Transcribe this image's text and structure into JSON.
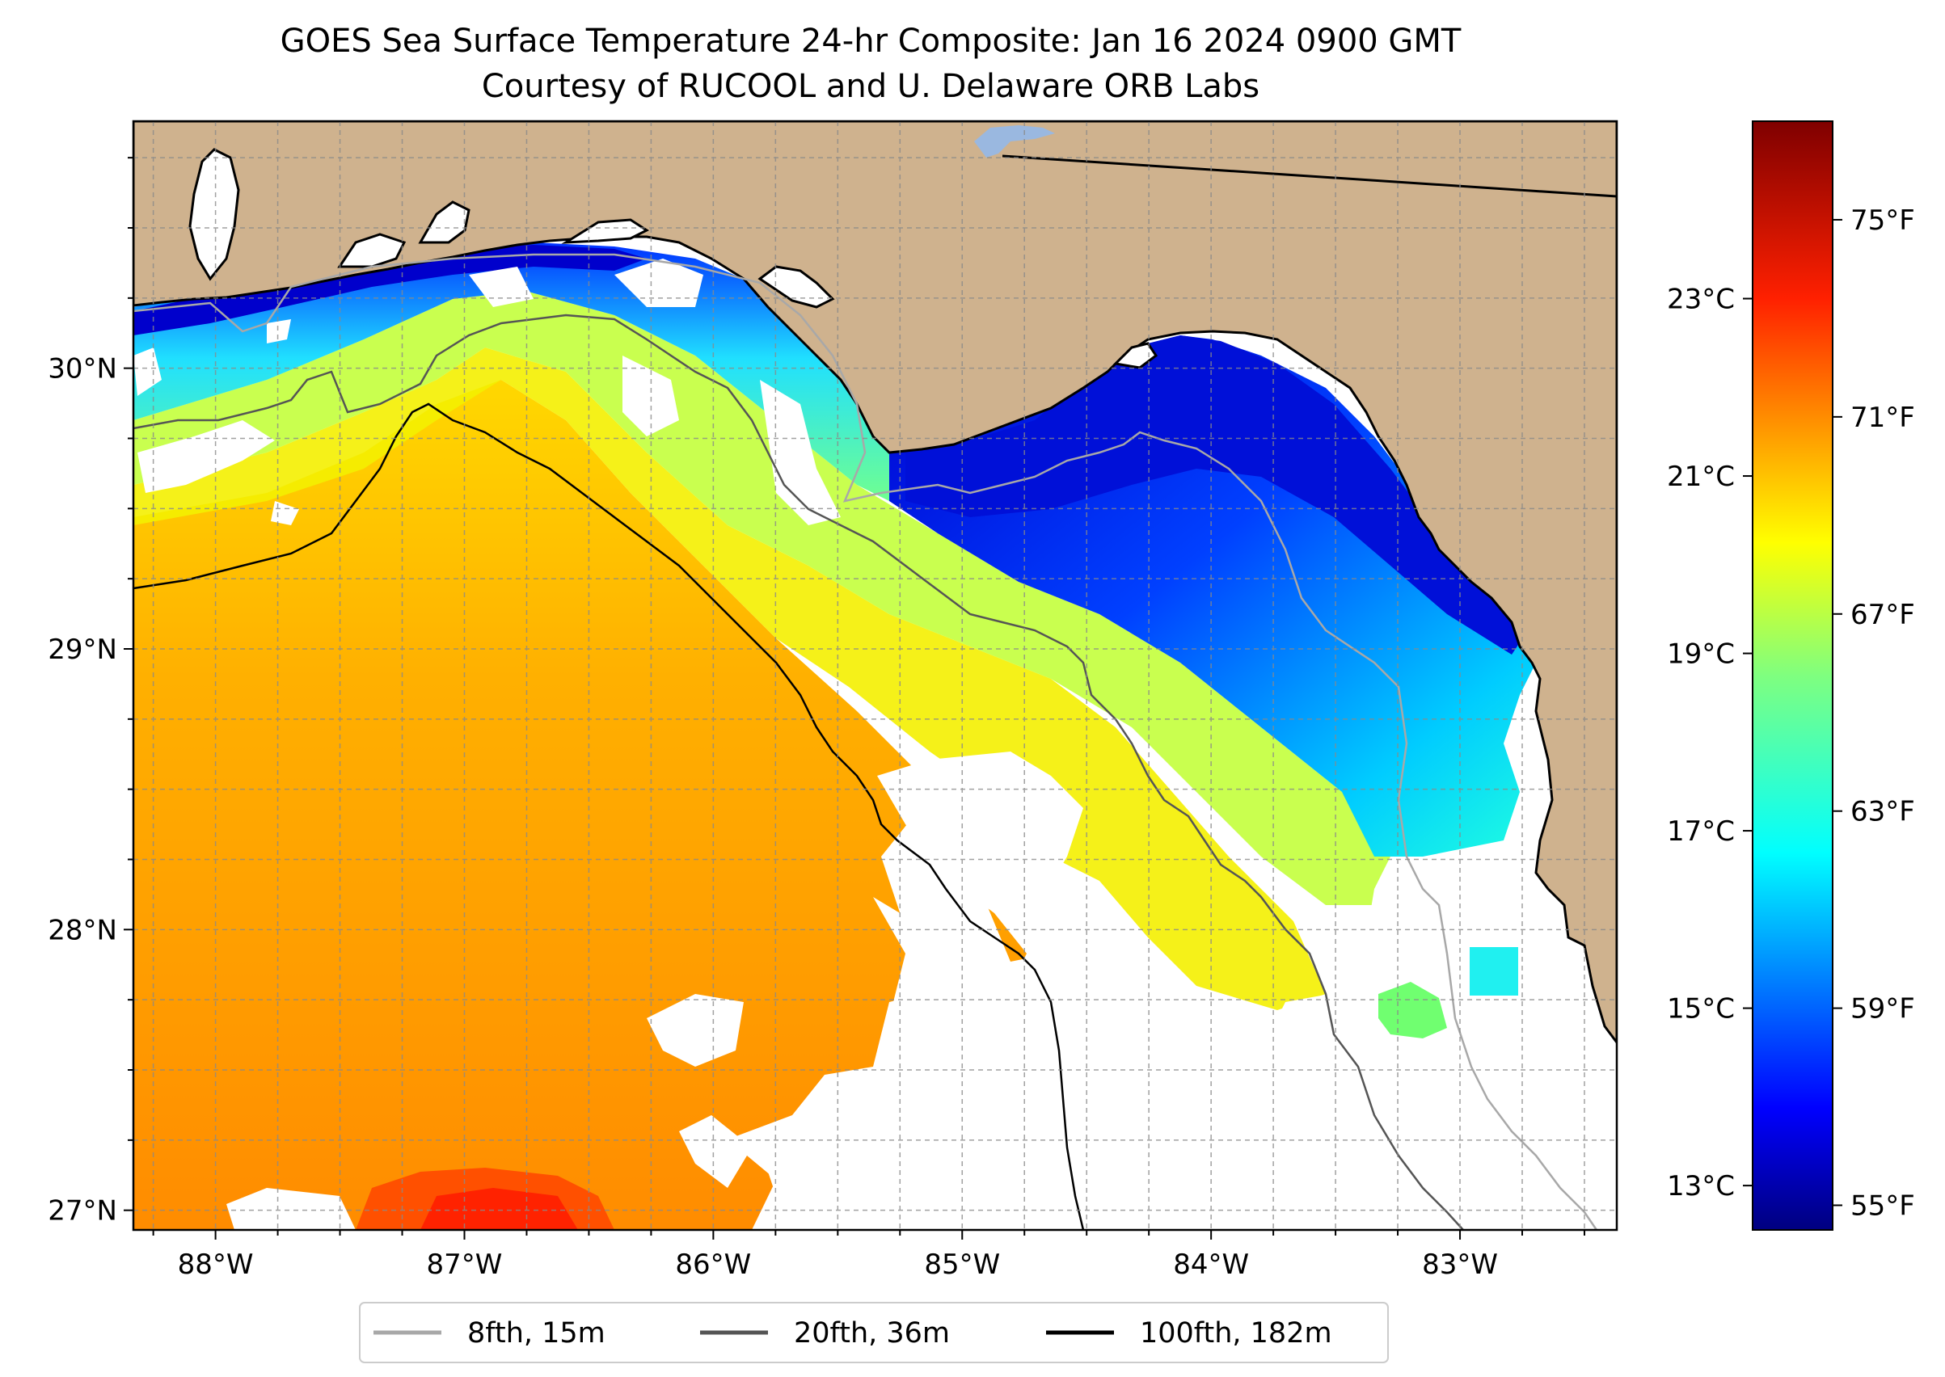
{
  "title": {
    "line1": "GOES Sea Surface Temperature 24-hr Composite: Jan 16 2024 0900 GMT",
    "line2": "Courtesy of RUCOOL and U. Delaware ORB Labs"
  },
  "map": {
    "lon_range": [
      -88.33,
      -82.37
    ],
    "lat_range": [
      26.93,
      30.88
    ],
    "lon_ticks": [
      {
        "value": -88,
        "label": "88°W"
      },
      {
        "value": -87,
        "label": "87°W"
      },
      {
        "value": -86,
        "label": "86°W"
      },
      {
        "value": -85,
        "label": "85°W"
      },
      {
        "value": -84,
        "label": "84°W"
      },
      {
        "value": -83,
        "label": "83°W"
      }
    ],
    "lat_ticks": [
      {
        "value": 27,
        "label": "27°N"
      },
      {
        "value": 28,
        "label": "28°N"
      },
      {
        "value": 29,
        "label": "29°N"
      },
      {
        "value": 30,
        "label": "30°N"
      }
    ],
    "grid": true,
    "colors": {
      "land": "#cfb28e",
      "no_data": "#ffffff",
      "lake": "#9ab8e0"
    }
  },
  "colorbar": {
    "colormap": "jet",
    "range_f": [
      54.5,
      77
    ],
    "fahrenheit_ticks": [
      {
        "value": 55,
        "label": "55°F"
      },
      {
        "value": 59,
        "label": "59°F"
      },
      {
        "value": 63,
        "label": "63°F"
      },
      {
        "value": 67,
        "label": "67°F"
      },
      {
        "value": 71,
        "label": "71°F"
      },
      {
        "value": 75,
        "label": "75°F"
      }
    ],
    "celsius_ticks": [
      {
        "value": 13,
        "label": "13°C"
      },
      {
        "value": 15,
        "label": "15°C"
      },
      {
        "value": 17,
        "label": "17°C"
      },
      {
        "value": 19,
        "label": "19°C"
      },
      {
        "value": 21,
        "label": "21°C"
      },
      {
        "value": 23,
        "label": "23°C"
      }
    ]
  },
  "legend": {
    "placement": "below map",
    "items": [
      {
        "label": "8fth, 15m",
        "color": "#a8a8a8"
      },
      {
        "label": "20fth, 36m",
        "color": "#555555"
      },
      {
        "label": "100fth, 182m",
        "color": "#000000"
      }
    ]
  }
}
